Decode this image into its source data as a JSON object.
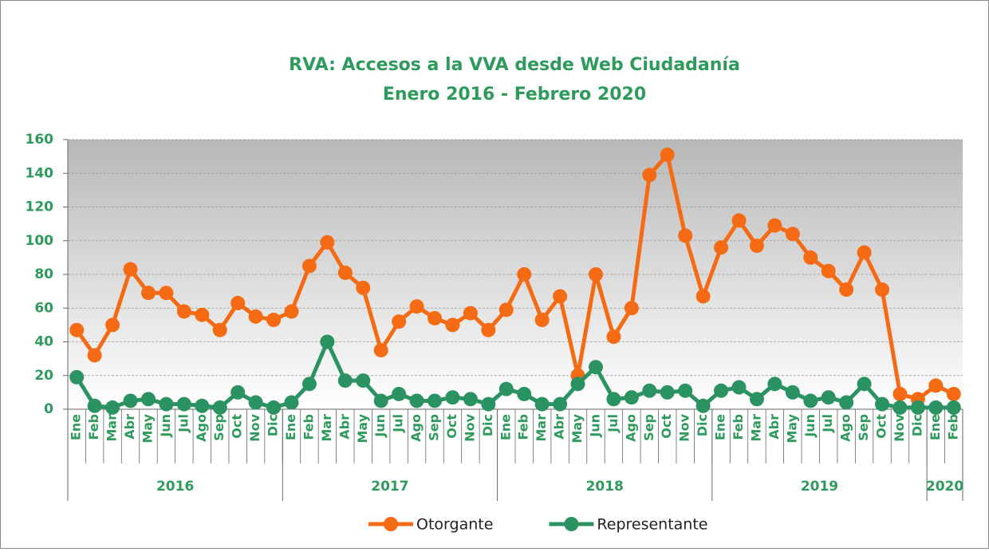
{
  "chart_data": {
    "type": "line",
    "title": "RVA: Accesos a la VVA desde Web Ciudadanía",
    "subtitle": "Enero 2016 - Febrero 2020",
    "categories": [
      "Ene",
      "Feb",
      "Mar",
      "Abr",
      "May",
      "Jun",
      "Jul",
      "Ago",
      "Sep",
      "Oct",
      "Nov",
      "Dic",
      "Ene",
      "Feb",
      "Mar",
      "Abr",
      "May",
      "Jun",
      "Jul",
      "Ago",
      "Sep",
      "Oct",
      "Nov",
      "Dic",
      "Ene",
      "Feb",
      "Mar",
      "Abr",
      "May",
      "Jun",
      "Jul",
      "Ago",
      "Sep",
      "Oct",
      "Nov",
      "Dic",
      "Ene",
      "Feb",
      "Mar",
      "Abr",
      "May",
      "Jun",
      "Jul",
      "Ago",
      "Sep",
      "Oct",
      "Nov",
      "Dic",
      "Ene",
      "Feb"
    ],
    "years": [
      "2016",
      "2017",
      "2018",
      "2019",
      "2020"
    ],
    "series": [
      {
        "name": "Otorgante",
        "color": "#f46b14",
        "values": [
          47,
          32,
          50,
          83,
          69,
          69,
          58,
          56,
          47,
          63,
          55,
          53,
          58,
          85,
          99,
          81,
          72,
          35,
          52,
          61,
          54,
          50,
          57,
          47,
          59,
          80,
          53,
          67,
          20,
          80,
          43,
          60,
          139,
          151,
          103,
          67,
          96,
          112,
          97,
          109,
          104,
          90,
          82,
          71,
          93,
          71,
          9,
          6,
          14,
          9
        ]
      },
      {
        "name": "Representante",
        "color": "#2b9262",
        "values": [
          19,
          2,
          1,
          5,
          6,
          3,
          3,
          2,
          1,
          10,
          4,
          1,
          4,
          15,
          40,
          17,
          17,
          5,
          9,
          5,
          5,
          7,
          6,
          3,
          12,
          9,
          3,
          3,
          15,
          25,
          6,
          7,
          11,
          10,
          11,
          2,
          11,
          13,
          6,
          15,
          10,
          5,
          7,
          4,
          15,
          3,
          1,
          1,
          1,
          1
        ]
      }
    ],
    "ylim": [
      0,
      160
    ],
    "yticks": [
      0,
      20,
      40,
      60,
      80,
      100,
      120,
      140,
      160
    ],
    "grid": true
  }
}
